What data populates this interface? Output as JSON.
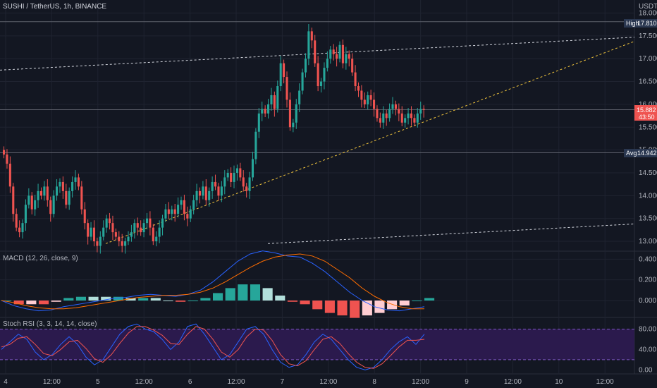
{
  "header": {
    "symbol_title": "SUSHI / TetherUS, 1h, BINANCE",
    "currency": "USDT"
  },
  "colors": {
    "background": "#131722",
    "grid": "#1f2330",
    "up": "#26a69a",
    "down": "#ef5350",
    "text": "#b2b5be",
    "macd_line": "#2962ff",
    "signal_line": "#ff6d00",
    "stoch_k": "#2962ff",
    "stoch_d": "#ef5350",
    "stoch_band": "#2b1a4d",
    "trend_white": "#d1d4dc",
    "trend_yellow": "#f0c43c",
    "high_tag": "#2a3750",
    "avg_tag": "#2a3750",
    "price_tag": "#ef5350"
  },
  "price_tags": {
    "high": {
      "label": "High",
      "value": "17.810"
    },
    "avg": {
      "label": "Avg",
      "value": "14.942"
    },
    "last": {
      "value": "15.882",
      "countdown": "43:50"
    }
  },
  "x_axis": {
    "labels": [
      "4",
      "12:00",
      "5",
      "12:00",
      "6",
      "12:00",
      "7",
      "12:00",
      "8",
      "12:00",
      "9",
      "12:00",
      "10",
      "12:00"
    ]
  },
  "indicators": {
    "macd": {
      "title": "MACD (12, 26, close, 9)",
      "ticks": [
        "0.400",
        "0.200",
        "0.000"
      ]
    },
    "stoch": {
      "title": "Stoch RSI (3, 3, 14, 14, close)",
      "ticks": [
        "80.00",
        "40.00",
        "0.00"
      ]
    }
  },
  "chart_data": [
    {
      "type": "candlestick",
      "title": "SUSHI / TetherUS, 1h, BINANCE",
      "ylabel": "USDT",
      "ylim": [
        12.8,
        18.1
      ],
      "y_ticks": [
        "18.000",
        "17.500",
        "17.000",
        "16.500",
        "16.000",
        "15.500",
        "15.000",
        "14.500",
        "14.000",
        "13.500",
        "13.000"
      ],
      "x_ticks": [
        "4",
        "12:00",
        "5",
        "12:00",
        "6",
        "12:00",
        "7",
        "12:00",
        "8",
        "12:00",
        "9",
        "12:00",
        "10",
        "12:00"
      ],
      "candles_close": [
        14.9,
        14.7,
        14.2,
        13.6,
        13.3,
        13.2,
        13.4,
        13.8,
        14.0,
        13.7,
        13.9,
        14.1,
        14.0,
        14.2,
        13.9,
        13.6,
        14.0,
        14.2,
        14.3,
        14.1,
        13.8,
        14.1,
        14.3,
        14.4,
        14.2,
        13.7,
        13.4,
        13.1,
        13.3,
        13.0,
        12.9,
        13.1,
        13.3,
        13.5,
        13.4,
        13.2,
        13.1,
        13.0,
        12.9,
        13.0,
        13.1,
        13.2,
        13.4,
        13.3,
        13.2,
        13.4,
        13.5,
        13.3,
        13.0,
        13.1,
        13.3,
        13.5,
        13.7,
        13.6,
        13.7,
        13.6,
        13.8,
        13.9,
        13.6,
        13.5,
        13.7,
        13.9,
        14.1,
        14.0,
        14.2,
        13.9,
        14.1,
        14.3,
        14.2,
        14.0,
        14.2,
        14.4,
        14.5,
        14.3,
        14.5,
        14.6,
        14.4,
        14.2,
        14.1,
        14.4,
        14.8,
        15.4,
        15.8,
        15.9,
        15.8,
        16.0,
        16.2,
        15.9,
        16.4,
        16.9,
        16.6,
        16.1,
        15.5,
        15.6,
        16.0,
        16.3,
        16.7,
        17.0,
        17.6,
        17.4,
        16.9,
        16.4,
        16.5,
        16.8,
        17.0,
        17.2,
        17.1,
        17.0,
        17.3,
        16.9,
        17.1,
        17.0,
        16.7,
        16.4,
        16.3,
        16.1,
        16.0,
        16.2,
        16.1,
        15.9,
        15.7,
        15.6,
        15.8,
        15.7,
        15.9,
        16.0,
        15.9,
        15.8,
        15.6,
        15.7,
        15.8,
        15.7,
        15.6,
        15.8,
        15.9,
        15.88
      ],
      "trendlines": [
        {
          "name": "upper channel",
          "from": [
            0,
            16.75
          ],
          "to": [
            900,
            17.47
          ]
        },
        {
          "name": "support",
          "from": [
            150,
            12.95
          ],
          "to": [
            900,
            17.38
          ]
        },
        {
          "name": "lower channel",
          "from": [
            380,
            12.95
          ],
          "to": [
            900,
            13.38
          ]
        }
      ],
      "horizontal_lines": [
        17.81,
        15.882,
        14.942
      ]
    },
    {
      "type": "line",
      "title": "MACD (12, 26, close, 9)",
      "ylim": [
        -0.15,
        0.45
      ],
      "y_ticks": [
        "0.400",
        "0.200",
        "0.000"
      ],
      "series": [
        {
          "name": "MACD",
          "values": [
            0.0,
            -0.05,
            -0.08,
            -0.1,
            -0.09,
            -0.06,
            -0.04,
            -0.02,
            0.0,
            0.02,
            0.03,
            0.05,
            0.06,
            0.05,
            0.04,
            0.06,
            0.1,
            0.18,
            0.28,
            0.38,
            0.45,
            0.48,
            0.46,
            0.43,
            0.42,
            0.36,
            0.28,
            0.18,
            0.08,
            0.0,
            -0.06,
            -0.09,
            -0.1,
            -0.08,
            -0.06
          ]
        },
        {
          "name": "Signal",
          "values": [
            0.0,
            -0.02,
            -0.05,
            -0.07,
            -0.08,
            -0.08,
            -0.07,
            -0.05,
            -0.03,
            -0.01,
            0.01,
            0.03,
            0.04,
            0.05,
            0.05,
            0.06,
            0.08,
            0.12,
            0.18,
            0.25,
            0.32,
            0.38,
            0.42,
            0.44,
            0.45,
            0.43,
            0.38,
            0.3,
            0.22,
            0.12,
            0.04,
            -0.02,
            -0.06,
            -0.08,
            -0.08
          ]
        }
      ]
    },
    {
      "type": "line",
      "title": "Stoch RSI (3, 3, 14, 14, close)",
      "ylim": [
        -5,
        100
      ],
      "y_ticks": [
        "80.00",
        "40.00",
        "0.00"
      ],
      "series": [
        {
          "name": "K",
          "values": [
            40,
            55,
            70,
            60,
            35,
            20,
            30,
            50,
            65,
            50,
            25,
            10,
            20,
            45,
            70,
            85,
            90,
            80,
            75,
            60,
            40,
            55,
            85,
            90,
            70,
            45,
            20,
            30,
            55,
            80,
            85,
            70,
            40,
            15,
            5,
            10,
            30,
            55,
            70,
            60,
            40,
            20,
            5,
            0,
            5,
            20,
            40,
            55,
            65,
            50,
            70
          ]
        },
        {
          "name": "D",
          "values": [
            45,
            50,
            62,
            65,
            50,
            32,
            28,
            40,
            55,
            58,
            42,
            22,
            15,
            30,
            52,
            72,
            85,
            85,
            78,
            68,
            52,
            50,
            70,
            85,
            80,
            60,
            35,
            25,
            40,
            65,
            80,
            78,
            58,
            30,
            12,
            8,
            18,
            40,
            60,
            65,
            52,
            32,
            15,
            5,
            3,
            12,
            28,
            45,
            58,
            58,
            60
          ]
        }
      ]
    }
  ]
}
